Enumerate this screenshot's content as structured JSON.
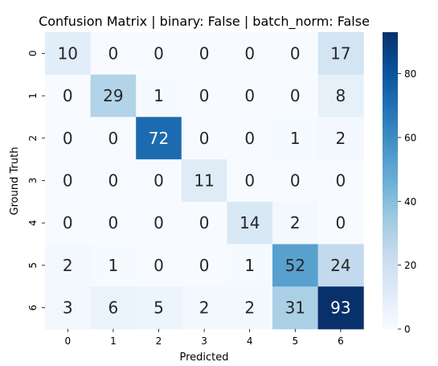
{
  "chart_data": {
    "type": "heatmap",
    "title": "Confusion Matrix | binary: False | batch_norm: False",
    "xlabel": "Predicted",
    "ylabel": "Ground Truth",
    "x_categories": [
      "0",
      "1",
      "2",
      "3",
      "4",
      "5",
      "6"
    ],
    "y_categories": [
      "0",
      "1",
      "2",
      "3",
      "4",
      "5",
      "6"
    ],
    "values": [
      [
        10,
        0,
        0,
        0,
        0,
        0,
        17
      ],
      [
        0,
        29,
        1,
        0,
        0,
        0,
        8
      ],
      [
        0,
        0,
        72,
        0,
        0,
        1,
        2
      ],
      [
        0,
        0,
        0,
        11,
        0,
        0,
        0
      ],
      [
        0,
        0,
        0,
        0,
        14,
        2,
        0
      ],
      [
        2,
        1,
        0,
        0,
        1,
        52,
        24
      ],
      [
        3,
        6,
        5,
        2,
        2,
        31,
        93
      ]
    ],
    "colormap": "Blues",
    "vmin": 0,
    "vmax": 93,
    "colorbar_ticks": [
      0,
      20,
      40,
      60,
      80
    ],
    "grid": false
  }
}
